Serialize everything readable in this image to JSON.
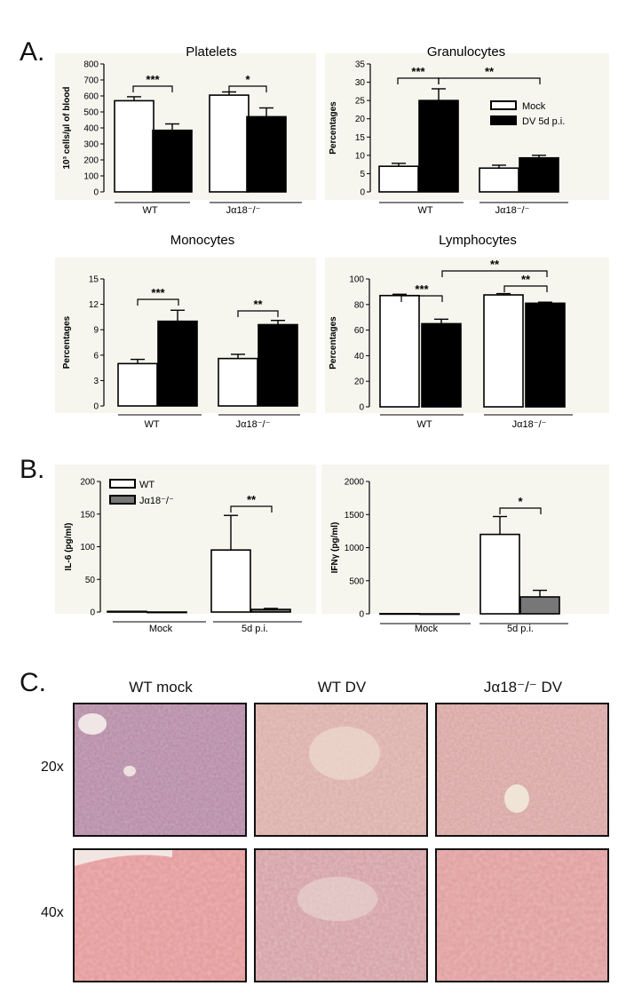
{
  "panels": {
    "a": "A.",
    "b": "B.",
    "c": "C."
  },
  "colors": {
    "mock": "#ffffff",
    "dv": "#000000",
    "ko": "#777777",
    "bg": "#f6f6ef"
  },
  "chart_data": [
    {
      "type": "bar",
      "title": "Platelets",
      "ylabel": "10³ cells/µl of blood",
      "ylim": [
        0,
        800
      ],
      "yticks": [
        0,
        100,
        200,
        300,
        400,
        500,
        600,
        700,
        800
      ],
      "groups": [
        "WT",
        "Jα18⁻/⁻"
      ],
      "series": [
        {
          "values": [
            570,
            605
          ],
          "errors": [
            25,
            20
          ]
        },
        {
          "values": [
            385,
            470
          ],
          "errors": [
            40,
            55
          ]
        }
      ],
      "significance": [
        "***",
        "*"
      ]
    },
    {
      "type": "bar",
      "title": "Granulocytes",
      "ylabel": "Percentages",
      "ylim": [
        0,
        35
      ],
      "yticks": [
        0,
        5,
        10,
        15,
        20,
        25,
        30,
        35
      ],
      "groups": [
        "WT",
        "Jα18⁻/⁻"
      ],
      "series": [
        {
          "name": "Mock",
          "values": [
            7,
            6.5
          ],
          "errors": [
            0.8,
            0.8
          ]
        },
        {
          "name": "DV 5d p.i.",
          "values": [
            25,
            9.3
          ],
          "errors": [
            3.2,
            0.7
          ]
        }
      ],
      "significance": [
        "***",
        "**"
      ]
    },
    {
      "type": "bar",
      "title": "Monocytes",
      "ylabel": "Percentages",
      "ylim": [
        0,
        15
      ],
      "yticks": [
        0,
        3,
        6,
        9,
        12,
        15
      ],
      "groups": [
        "WT",
        "Jα18⁻/⁻"
      ],
      "series": [
        {
          "values": [
            5,
            5.6
          ],
          "errors": [
            0.5,
            0.5
          ]
        },
        {
          "values": [
            10,
            9.6
          ],
          "errors": [
            1.3,
            0.5
          ]
        }
      ],
      "significance": [
        "***",
        "**"
      ]
    },
    {
      "type": "bar",
      "title": "Lymphocytes",
      "ylabel": "Percentages",
      "ylim": [
        0,
        100
      ],
      "yticks": [
        0,
        20,
        40,
        60,
        80,
        100
      ],
      "groups": [
        "WT",
        "Jα18⁻/⁻"
      ],
      "series": [
        {
          "values": [
            87,
            87.5
          ],
          "errors": [
            1,
            1
          ]
        },
        {
          "values": [
            65,
            81
          ],
          "errors": [
            3.5,
            0.8
          ]
        }
      ],
      "significance": [
        "***",
        "**",
        "**"
      ]
    },
    {
      "type": "bar",
      "ylabel": "IL-6 (pg/ml)",
      "ylim": [
        0,
        200
      ],
      "yticks": [
        0,
        50,
        100,
        150,
        200
      ],
      "groups": [
        "Mock",
        "5d p.i."
      ],
      "series": [
        {
          "name": "WT",
          "values": [
            1,
            95
          ],
          "errors": [
            0,
            53
          ]
        },
        {
          "name": "Jα18⁻/⁻",
          "values": [
            0,
            4
          ],
          "errors": [
            0,
            1.5
          ]
        }
      ],
      "significance": [
        "**"
      ]
    },
    {
      "type": "bar",
      "ylabel": "IFNγ (pg/ml)",
      "ylim": [
        0,
        2000
      ],
      "yticks": [
        0,
        500,
        1000,
        1500,
        2000
      ],
      "groups": [
        "Mock",
        "5d p.i."
      ],
      "series": [
        {
          "values": [
            3,
            1200
          ],
          "errors": [
            0,
            270
          ]
        },
        {
          "values": [
            0,
            255
          ],
          "errors": [
            0,
            100
          ]
        }
      ],
      "significance": [
        "*"
      ]
    }
  ],
  "histology": {
    "columns": [
      "WT mock",
      "WT DV",
      "Jα18⁻/⁻ DV"
    ],
    "rows": [
      "20x",
      "40x"
    ]
  }
}
